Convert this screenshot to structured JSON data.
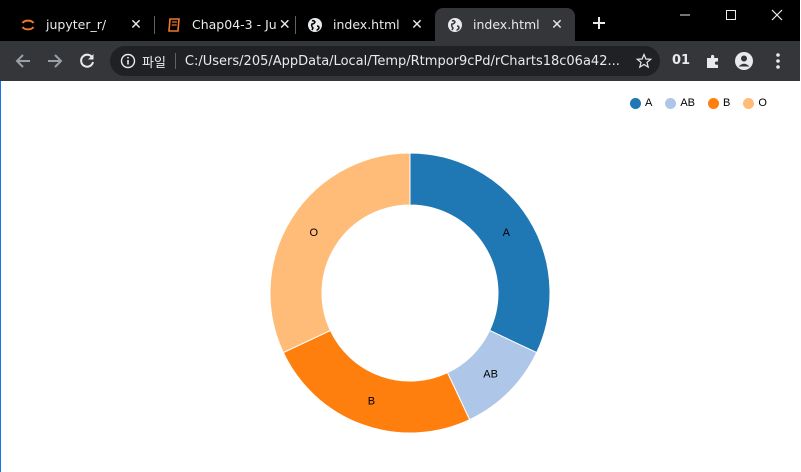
{
  "tabs": [
    {
      "title": "jupyter_r/",
      "icon": "jupyter-icon",
      "active": false
    },
    {
      "title": "Chap04-3 - Ju",
      "icon": "notebook-icon",
      "active": false
    },
    {
      "title": "index.html",
      "icon": "globe-icon",
      "active": false
    },
    {
      "title": "index.html",
      "icon": "globe-icon",
      "active": true
    }
  ],
  "toolbar": {
    "scheme_label": "파일",
    "url": "C:/Users/205/AppData/Local/Temp/Rtmpor9cPd/rCharts18c06a42...",
    "extension_text": "01"
  },
  "colors": {
    "A": "#1f77b4",
    "AB": "#aec7e8",
    "B": "#ff7f0e",
    "O": "#ffbb78"
  },
  "chart_data": {
    "type": "pie",
    "donut": true,
    "legend_position": "top-right",
    "categories": [
      "A",
      "AB",
      "B",
      "O"
    ],
    "values": [
      32,
      11,
      25,
      32
    ]
  }
}
